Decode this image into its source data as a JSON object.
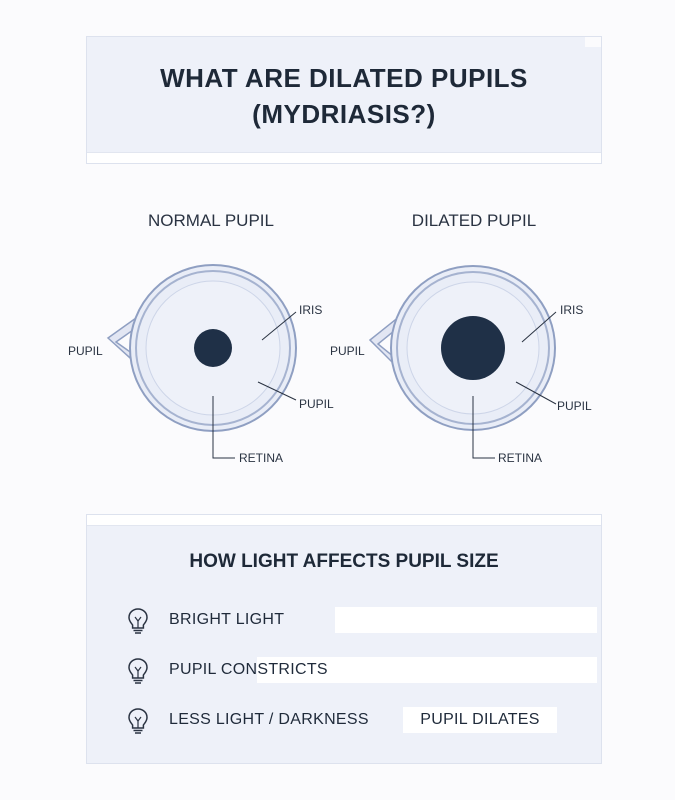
{
  "title": {
    "line1": "WHAT ARE DILATED PUPILS",
    "line2": "(MYDRIASIS?)"
  },
  "diagrams": {
    "normal": {
      "heading": "NORMAL PUPIL",
      "labels": {
        "iris": "IRIS",
        "pupil_left": "PUPIL",
        "pupil_right": "PUPIL",
        "retina": "RETINA"
      }
    },
    "dilated": {
      "heading": "DILATED PUPIL",
      "labels": {
        "iris": "IRIS",
        "pupil_left": "PUPIL",
        "pupil_right": "PUPIL",
        "retina": "RETINA"
      }
    }
  },
  "light_section": {
    "title": "HOW LIGHT AFFECTS PUPIL SIZE",
    "rows": [
      {
        "icon": "lightbulb-icon",
        "text": "BRIGHT LIGHT",
        "box_text": ""
      },
      {
        "icon": "lightbulb-icon",
        "text": "PUPIL CONSTRICTS",
        "box_text": ""
      },
      {
        "icon": "lightbulb-icon",
        "text": "LESS LIGHT / DARKNESS",
        "box_text": "PUPIL DILATES"
      }
    ]
  },
  "colors": {
    "pupil": "#1f3047",
    "iris_fill": "#e6eaf6",
    "ring_outer": "#8f9fc2",
    "card_bg": "#eef1f9"
  }
}
